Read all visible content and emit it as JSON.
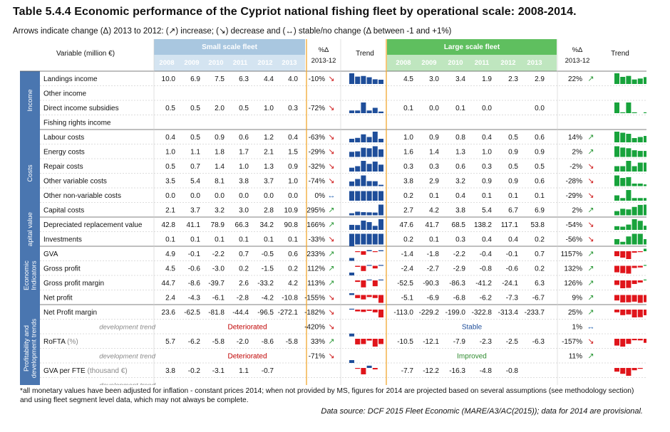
{
  "title": "Table 5.4.4 Economic performance of the Cypriot national fishing fleet by operational scale: 2008-2014.",
  "subtitle": "Arrows indicate change (Δ) 2013 to 2012: (↗) increase; (↘) decrease and (↔) stable/no change (Δ between -1 and +1%)",
  "header": {
    "variable": "Variable (million €)",
    "small_fleet": "Small scale fleet",
    "large_fleet": "Large scale fleet",
    "years": [
      "2008",
      "2009",
      "2010",
      "2011",
      "2012",
      "2013"
    ],
    "pct_label": "%Δ",
    "pct_period": "2013-12",
    "trend": "Trend"
  },
  "colors": {
    "small_header": "#a9c7e0",
    "large_header": "#5fbf5f",
    "small_bar": "#1f4e9a",
    "large_bar": "#18a33c",
    "negative_bar": "#e0151b",
    "group_band": "#4a76b0",
    "divider": "#f0a830",
    "text_red": "#c00000",
    "text_blue": "#1f4e9a",
    "text_green": "#2e8b2e"
  },
  "groups": [
    {
      "label": "Income",
      "start": 0,
      "count": 4
    },
    {
      "label": "Costs",
      "start": 4,
      "count": 6
    },
    {
      "label": "Capital value",
      "start": 10,
      "count": 2
    },
    {
      "label": "Economic Indicators",
      "start": 12,
      "count": 4
    },
    {
      "label": "Profitability and development trends",
      "start": 16,
      "count": 6
    }
  ],
  "rows": [
    {
      "label": "Landings income",
      "small": [
        "10.0",
        "6.9",
        "7.5",
        "6.3",
        "4.4",
        "4.0"
      ],
      "small_pct": "-10%",
      "small_arrow": "down",
      "large": [
        "4.5",
        "3.0",
        "3.4",
        "1.9",
        "2.3",
        "2.9"
      ],
      "large_pct": "22%",
      "large_arrow": "up"
    },
    {
      "label": "Other income",
      "small": [
        "",
        "",
        "",
        "",
        "",
        ""
      ],
      "small_pct": "",
      "small_arrow": "",
      "large": [
        "",
        "",
        "",
        "",
        "",
        ""
      ],
      "large_pct": "",
      "large_arrow": ""
    },
    {
      "label": "Direct income subsidies",
      "small": [
        "0.5",
        "0.5",
        "2.0",
        "0.5",
        "1.0",
        "0.3"
      ],
      "small_pct": "-72%",
      "small_arrow": "down",
      "large": [
        "0.1",
        "0.0",
        "0.1",
        "0.0",
        "",
        "0.0"
      ],
      "large_pct": "",
      "large_arrow": ""
    },
    {
      "label": "Fishing rights income",
      "small": [
        "",
        "",
        "",
        "",
        "",
        ""
      ],
      "small_pct": "",
      "small_arrow": "",
      "large": [
        "",
        "",
        "",
        "",
        "",
        ""
      ],
      "large_pct": "",
      "large_arrow": ""
    },
    {
      "label": "Labour costs",
      "small": [
        "0.4",
        "0.5",
        "0.9",
        "0.6",
        "1.2",
        "0.4"
      ],
      "small_pct": "-63%",
      "small_arrow": "down",
      "large": [
        "1.0",
        "0.9",
        "0.8",
        "0.4",
        "0.5",
        "0.6"
      ],
      "large_pct": "14%",
      "large_arrow": "up"
    },
    {
      "label": "Energy costs",
      "small": [
        "1.0",
        "1.1",
        "1.8",
        "1.7",
        "2.1",
        "1.5"
      ],
      "small_pct": "-29%",
      "small_arrow": "down",
      "large": [
        "1.6",
        "1.4",
        "1.3",
        "1.0",
        "0.9",
        "0.9"
      ],
      "large_pct": "2%",
      "large_arrow": "up"
    },
    {
      "label": "Repair costs",
      "small": [
        "0.5",
        "0.7",
        "1.4",
        "1.0",
        "1.3",
        "0.9"
      ],
      "small_pct": "-32%",
      "small_arrow": "down",
      "large": [
        "0.3",
        "0.3",
        "0.6",
        "0.3",
        "0.5",
        "0.5"
      ],
      "large_pct": "-2%",
      "large_arrow": "down"
    },
    {
      "label": "Other variable costs",
      "small": [
        "3.5",
        "5.4",
        "8.1",
        "3.8",
        "3.7",
        "1.0"
      ],
      "small_pct": "-74%",
      "small_arrow": "down",
      "large": [
        "3.8",
        "2.9",
        "3.2",
        "0.9",
        "0.9",
        "0.6"
      ],
      "large_pct": "-28%",
      "large_arrow": "down"
    },
    {
      "label": "Other non-variable costs",
      "small": [
        "0.0",
        "0.0",
        "0.0",
        "0.0",
        "0.0",
        "0.0"
      ],
      "small_pct": "0%",
      "small_arrow": "stable",
      "large": [
        "0.2",
        "0.1",
        "0.4",
        "0.1",
        "0.1",
        "0.1"
      ],
      "large_pct": "-29%",
      "large_arrow": "down"
    },
    {
      "label": "Capital costs",
      "small": [
        "2.1",
        "3.7",
        "3.2",
        "3.0",
        "2.8",
        "10.9"
      ],
      "small_pct": "295%",
      "small_arrow": "up",
      "large": [
        "2.7",
        "4.2",
        "3.8",
        "5.4",
        "6.7",
        "6.9"
      ],
      "large_pct": "2%",
      "large_arrow": "up"
    },
    {
      "label": "Depreciated replacement value",
      "small": [
        "42.8",
        "41.1",
        "78.9",
        "66.3",
        "34.2",
        "90.8"
      ],
      "small_pct": "166%",
      "small_arrow": "up",
      "large": [
        "47.6",
        "41.7",
        "68.5",
        "138.2",
        "117.1",
        "53.8"
      ],
      "large_pct": "-54%",
      "large_arrow": "down"
    },
    {
      "label": "Investments",
      "small": [
        "0.1",
        "0.1",
        "0.1",
        "0.1",
        "0.1",
        "0.1"
      ],
      "small_pct": "-33%",
      "small_arrow": "down",
      "large": [
        "0.2",
        "0.1",
        "0.3",
        "0.4",
        "0.4",
        "0.2"
      ],
      "large_pct": "-56%",
      "large_arrow": "down"
    },
    {
      "label": "GVA",
      "small": [
        "4.9",
        "-0.1",
        "-2.2",
        "0.7",
        "-0.5",
        "0.6"
      ],
      "small_pct": "233%",
      "small_arrow": "up",
      "large": [
        "-1.4",
        "-1.8",
        "-2.2",
        "-0.4",
        "-0.1",
        "0.7"
      ],
      "large_pct": "1157%",
      "large_arrow": "up"
    },
    {
      "label": "Gross profit",
      "small": [
        "4.5",
        "-0.6",
        "-3.0",
        "0.2",
        "-1.5",
        "0.2"
      ],
      "small_pct": "112%",
      "small_arrow": "up",
      "large": [
        "-2.4",
        "-2.7",
        "-2.9",
        "-0.8",
        "-0.6",
        "0.2"
      ],
      "large_pct": "132%",
      "large_arrow": "up"
    },
    {
      "label": "Gross profit margin",
      "small": [
        "44.7",
        "-8.6",
        "-39.7",
        "2.6",
        "-33.2",
        "4.2"
      ],
      "small_pct": "113%",
      "small_arrow": "up",
      "large": [
        "-52.5",
        "-90.3",
        "-86.3",
        "-41.2",
        "-24.1",
        "6.3"
      ],
      "large_pct": "126%",
      "large_arrow": "up"
    },
    {
      "label": "Net profit",
      "small": [
        "2.4",
        "-4.3",
        "-6.1",
        "-2.8",
        "-4.2",
        "-10.8"
      ],
      "small_pct": "-155%",
      "small_arrow": "down",
      "large": [
        "-5.1",
        "-6.9",
        "-6.8",
        "-6.2",
        "-7.3",
        "-6.7"
      ],
      "large_pct": "9%",
      "large_arrow": "up"
    },
    {
      "label": "Net Profit margin",
      "small": [
        "23.6",
        "-62.5",
        "-81.8",
        "-44.4",
        "-96.5",
        "-272.1"
      ],
      "small_pct": "-182%",
      "small_arrow": "down",
      "large": [
        "-113.0",
        "-229.2",
        "-199.0",
        "-322.8",
        "-313.4",
        "-233.7"
      ],
      "large_pct": "25%",
      "large_arrow": "up"
    },
    {
      "label": "development trend",
      "dev": true,
      "small_text": "Deteriorated",
      "small_pct": "-420%",
      "small_arrow": "down",
      "large_text": "Stable",
      "large_pct": "1%",
      "large_arrow": "stable"
    },
    {
      "label": "RoFTA (%)",
      "small": [
        "5.7",
        "-6.2",
        "-5.8",
        "-2.0",
        "-8.6",
        "-5.8"
      ],
      "small_pct": "33%",
      "small_arrow": "up",
      "large": [
        "-10.5",
        "-12.1",
        "-7.9",
        "-2.3",
        "-2.5",
        "-6.3"
      ],
      "large_pct": "-157%",
      "large_arrow": "down"
    },
    {
      "label": "development trend",
      "dev": true,
      "small_text": "Deteriorated",
      "small_pct": "-71%",
      "small_arrow": "down",
      "large_text": "Improved",
      "large_pct": "11%",
      "large_arrow": "up"
    },
    {
      "label": "GVA per FTE (thousand €)",
      "small": [
        "3.8",
        "-0.2",
        "-3.1",
        "1.1",
        "-0.7",
        ""
      ],
      "small_pct": "",
      "small_arrow": "",
      "large": [
        "-7.7",
        "-12.2",
        "-16.3",
        "-4.8",
        "-0.8",
        ""
      ],
      "large_pct": "",
      "large_arrow": ""
    },
    {
      "label": "development trend",
      "dev": true,
      "small_text": "",
      "small_pct": "",
      "small_arrow": "",
      "large_text": "",
      "large_pct": "",
      "large_arrow": ""
    }
  ],
  "footnote": "*all monetary values have been adjusted for inflation - constant prices 2014; when not provided by MS, figures for 2014 are projected based on several assumptions (see methodology section) and using fleet segment level data, which may not always be complete.",
  "source": "Data source: DCF 2015 Fleet Economic (MARE/A3/AC(2015)); data for 2014 are provisional."
}
